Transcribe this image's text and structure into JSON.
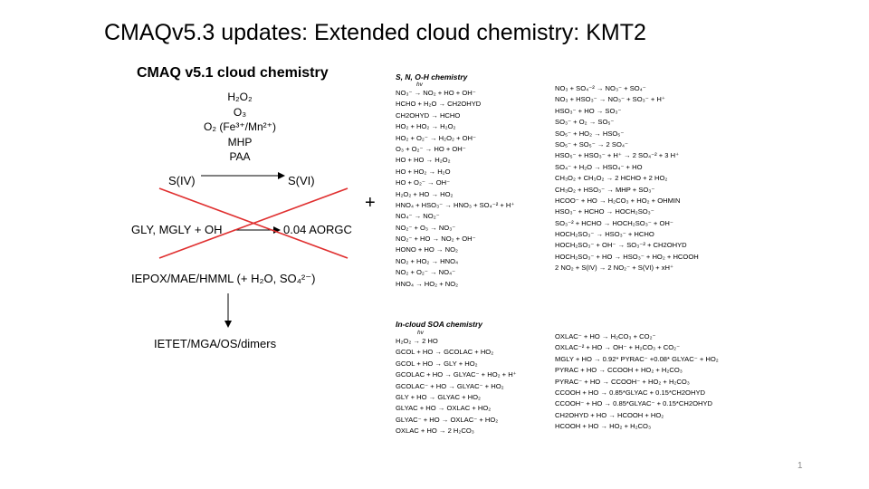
{
  "title": "CMAQv5.3 updates: Extended cloud chemistry: KMT2",
  "left_panel": {
    "subtitle": "CMAQ v5.1 cloud chemistry",
    "oxidants": [
      "H₂O₂",
      "O₃",
      "O₂ (Fe³⁺/Mn²⁺)",
      "MHP",
      "PAA"
    ],
    "siv": "S(IV)",
    "svi": "S(VI)",
    "gly_reactants": "GLY, MGLY + OH",
    "gly_products": "0.04 AORGC",
    "iepox": "IEPOX/MAE/HMML (+ H₂O, SO₄²⁻)",
    "ietet": "IETET/MGA/OS/dimers"
  },
  "plus": "+",
  "snoh": {
    "heading": "S, N, O-H chemistry",
    "hv_label": "hv",
    "col1": [
      "NO₃⁻ →  NO₂ + HO + OH⁻",
      "HCHO + H₂O → CH2OHYD",
      "CH2OHYD → HCHO",
      "HO₂ + HO₂ → H₂O₂",
      "HO₂ + O₂⁻ → H₂O₂ + OH⁻",
      "O₃ + O₂⁻ → HO + OH⁻",
      "HO + HO → H₂O₂",
      "HO + HO₂ → H₂O",
      "HO + O₂⁻ → OH⁻",
      "H₂O₂ + HO → HO₂",
      "HNO₄ + HSO₃⁻ → HNO₃ + SO₄⁻² + H⁺",
      "NO₄⁻ → NO₂⁻",
      "NO₂⁻ + O₃ → NO₃⁻",
      "NO₂⁻ + HO → NO₂ + OH⁻",
      "HONO + HO → NO₂",
      "NO₂ + HO₂ → HNO₄",
      "NO₂ + O₂⁻ → NO₄⁻",
      "HNO₄ → HO₂ + NO₂"
    ],
    "col2": [
      "NO₃ + SO₄⁻² → NO₃⁻ + SO₄⁻",
      "NO₃ + HSO₃⁻ → NO₃⁻ + SO₃⁻ + H⁺",
      "HSO₃⁻ + HO → SO₃⁻",
      "SO₃⁻ + O₂ → SO₅⁻",
      "SO₅⁻ + HO₂ → HSO₅⁻",
      "SO₅⁻ + SO₅⁻ → 2 SO₄⁻",
      "HSO₅⁻ + HSO₃⁻ + H⁺ → 2 SO₄⁻² + 3 H⁺",
      "SO₄⁻ + H₂O → HSO₄⁻ + HO",
      "CH₃O₂ + CH₃O₂ → 2 HCHO + 2 HO₂",
      "CH₃O₂ + HSO₃⁻ → MHP + SO₃⁻",
      "HCOO⁻ + HO → H₂CO₃ + HO₂ + OHMIN",
      "HSO₃⁻ + HCHO → HOCH₂SO₃⁻",
      "SO₃⁻² + HCHO → HOCH₂SO₃⁻ + OH⁻",
      "HOCH₂SO₃⁻ → HSO₃⁻ + HCHO",
      "HOCH₂SO₃⁻ + OH⁻ → SO₃⁻² + CH2OHYD",
      "HOCH₂SO₃⁻ + HO → HSO₃⁻ + HO₂ + HCOOH",
      "2 NO₂ + S(IV) → 2 NO₂⁻ + S(VI) + xH⁺"
    ]
  },
  "soa": {
    "heading": "In-cloud SOA chemistry",
    "hv_label": "hv",
    "col1": [
      "H₂O₂ → 2 HO",
      "GCOL + HO → GCOLAC + HO₂",
      "GCOL + HO → GLY + HO₂",
      "GCOLAC + HO → GLYAC⁻ + HO₂ + H⁺",
      "GCOLAC⁻ + HO → GLYAC⁻ + HO₂",
      "GLY + HO → GLYAC + HO₂",
      "GLYAC + HO → OXLAC + HO₂",
      "GLYAC⁻ + HO → OXLAC⁻ + HO₂",
      "OXLAC + HO → 2 H₂CO₃"
    ],
    "col2": [
      "OXLAC⁻ + HO → H₂CO₃ + CO₂⁻",
      "OXLAC⁻² + HO → OH⁻ + H₂CO₃ + CO₂⁻",
      "MGLY + HO → 0.92* PYRAC⁻ +0.08* GLYAC⁻ + HO₂",
      "PYRAC + HO → CCOOH + HO₂ + H₂CO₃",
      "PYRAC⁻ + HO → CCOOH⁻ + HO₂ + H₂CO₃",
      "CCOOH + HO → 0.85*GLYAC + 0.15*CH2OHYD",
      "CCOOH⁻ + HO → 0.85*GLYAC⁻ + 0.15*CH2OHYD",
      "CH2OHYD + HO → HCOOH + HO₂",
      "HCOOH + HO → HO₂ + H₂CO₃"
    ]
  },
  "page_number": "1"
}
